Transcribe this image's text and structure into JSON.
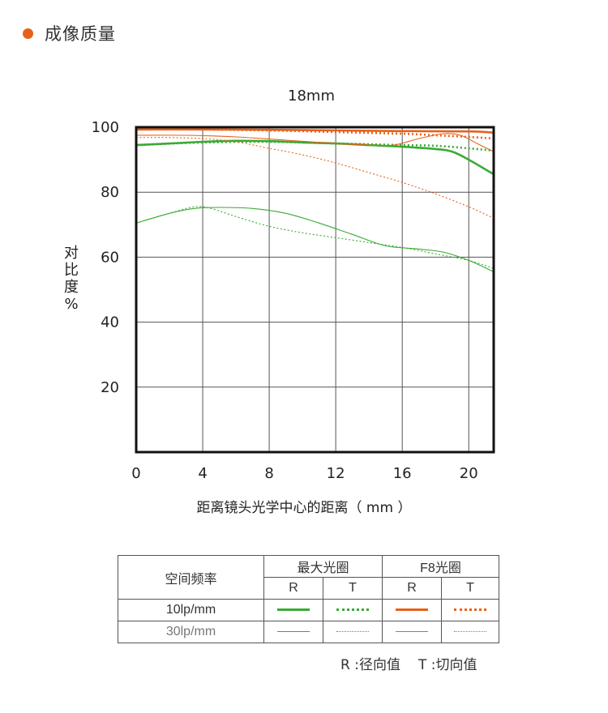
{
  "header": {
    "title": "成像质量",
    "dot_color": "#e8611a"
  },
  "chart_data": {
    "type": "line",
    "title": "18mm",
    "xlabel": "距离镜头光学中心的距离（ mm ）",
    "ylabel": "对比度%",
    "xlim": [
      0,
      21.5
    ],
    "ylim": [
      0,
      100
    ],
    "x_ticks": [
      "0",
      "4",
      "8",
      "12",
      "16",
      "20"
    ],
    "y_ticks": [
      "20",
      "40",
      "60",
      "80",
      "100"
    ],
    "grid": true,
    "series": [
      {
        "name": "最大光圈 10lp/mm R",
        "color": "#3aaa35",
        "style": "solid",
        "width": "thick",
        "x": [
          0,
          2,
          4,
          6,
          8,
          10,
          12,
          14,
          16,
          18,
          19,
          20,
          21.5
        ],
        "y": [
          94.5,
          95.0,
          95.5,
          95.8,
          95.7,
          95.3,
          95.0,
          94.5,
          94.0,
          93.3,
          92.5,
          90.0,
          85.5
        ]
      },
      {
        "name": "最大光圈 10lp/mm T",
        "color": "#3aaa35",
        "style": "dotted",
        "width": "thick",
        "x": [
          0,
          4,
          8,
          12,
          16,
          18,
          20,
          21.5
        ],
        "y": [
          94.5,
          95.3,
          95.5,
          95.0,
          94.5,
          94.3,
          93.5,
          92.8
        ]
      },
      {
        "name": "最大光圈 30lp/mm R",
        "color": "#3aaa35",
        "style": "solid",
        "width": "thin",
        "x": [
          0,
          2,
          3.5,
          5,
          7,
          9,
          11,
          13,
          15,
          17,
          18.5,
          20,
          21.5
        ],
        "y": [
          70.5,
          73.5,
          75.0,
          75.3,
          75.0,
          73.5,
          70.5,
          67.0,
          63.5,
          62.5,
          61.5,
          59.0,
          55.5
        ]
      },
      {
        "name": "最大光圈 30lp/mm T",
        "color": "#3aaa35",
        "style": "dotted",
        "width": "thin",
        "x": [
          0,
          2,
          3.5,
          4.5,
          6,
          8,
          10,
          12,
          14,
          16,
          18,
          20,
          21.5
        ],
        "y": [
          70.5,
          73.5,
          75.5,
          75.0,
          72.5,
          69.5,
          67.5,
          66.0,
          64.5,
          63.0,
          61.0,
          59.0,
          56.5
        ]
      },
      {
        "name": "F8光圈 10lp/mm R",
        "color": "#e8611a",
        "style": "solid",
        "width": "thick",
        "x": [
          0,
          4,
          8,
          12,
          16,
          20,
          21.5
        ],
        "y": [
          99.3,
          99.3,
          99.2,
          99.0,
          98.8,
          98.7,
          98.3
        ]
      },
      {
        "name": "F8光圈 10lp/mm T",
        "color": "#e8611a",
        "style": "dotted",
        "width": "thick",
        "x": [
          0,
          4,
          8,
          12,
          16,
          18,
          20,
          21.5
        ],
        "y": [
          99.3,
          99.3,
          99.0,
          98.5,
          98.0,
          97.5,
          97.0,
          96.5
        ]
      },
      {
        "name": "F8光圈 30lp/mm R",
        "color": "#e8611a",
        "style": "solid",
        "width": "thin",
        "x": [
          0,
          3,
          6,
          9,
          12,
          14,
          15.5,
          17,
          18.5,
          19.5,
          20.5,
          21.5
        ],
        "y": [
          97.5,
          97.5,
          97.0,
          96.0,
          95.0,
          94.5,
          94.5,
          96.5,
          98.0,
          97.5,
          95.0,
          92.5
        ]
      },
      {
        "name": "F8光圈 30lp/mm T",
        "color": "#e8611a",
        "style": "dotted",
        "width": "thin",
        "x": [
          0,
          2,
          4,
          6,
          8,
          10,
          12,
          14,
          16,
          18,
          20,
          21.5
        ],
        "y": [
          96.8,
          96.8,
          96.5,
          95.5,
          93.5,
          91.5,
          89.0,
          86.0,
          83.0,
          79.5,
          75.5,
          72.0
        ]
      }
    ]
  },
  "legend": {
    "col_spatial": "空间频率",
    "group_max": "最大光圈",
    "group_f8": "F8光圈",
    "r": "R",
    "t": "T",
    "row_10": "10lp/mm",
    "row_30": "30lp/mm",
    "green": "#3aaa35",
    "orange": "#e8611a"
  },
  "note": {
    "r": "R :径向值",
    "t": "T :切向值"
  }
}
